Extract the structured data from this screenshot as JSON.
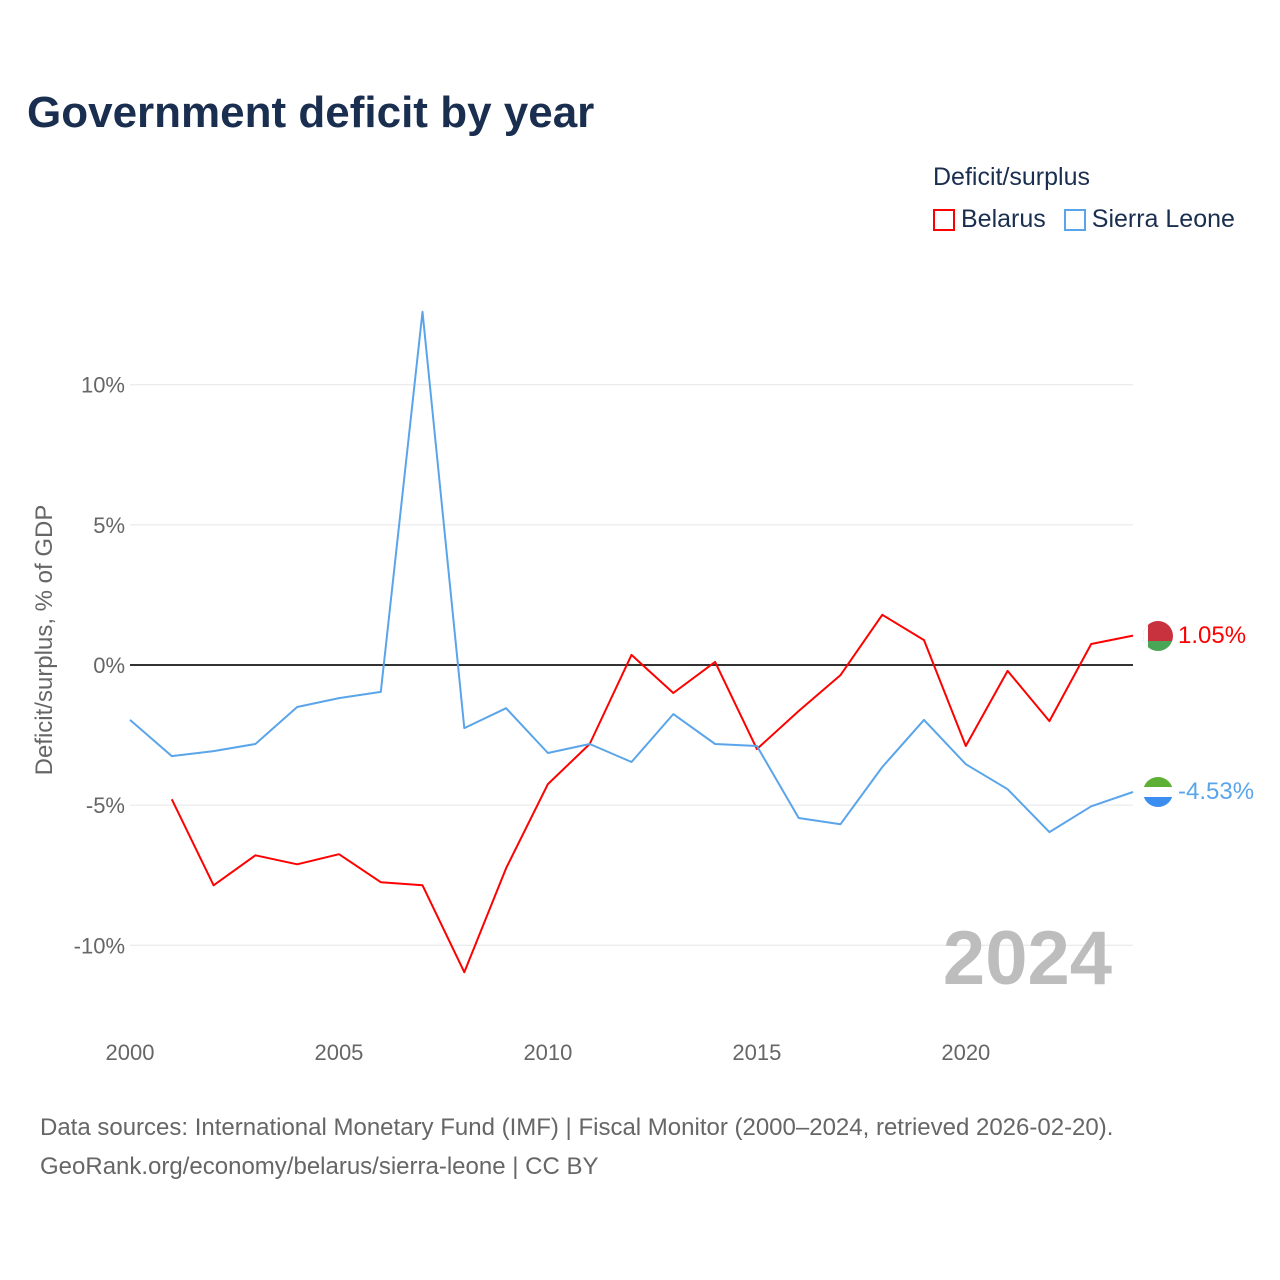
{
  "chart_data": {
    "type": "line",
    "title": "Government deficit by year",
    "ylabel": "Deficit/surplus, % of GDP",
    "xlabel": "",
    "legend_title": "Deficit/surplus",
    "legend_position": "top-right",
    "watermark_year": "2024",
    "xlim": [
      2000,
      2024
    ],
    "ylim": [
      -12.5,
      13.5
    ],
    "x_ticks": [
      2000,
      2005,
      2010,
      2015,
      2020
    ],
    "y_ticks": [
      10,
      5,
      0,
      -5,
      -10
    ],
    "y_tick_labels": [
      "10%",
      "5%",
      "0%",
      "-5%",
      "-10%"
    ],
    "x_tick_labels": [
      "2000",
      "2005",
      "2010",
      "2015",
      "2020"
    ],
    "series": [
      {
        "name": "Belarus",
        "color": "#ff0000",
        "end_label": "1.05%",
        "x": [
          2001,
          2002,
          2003,
          2004,
          2005,
          2006,
          2007,
          2008,
          2009,
          2010,
          2011,
          2012,
          2013,
          2014,
          2015,
          2016,
          2017,
          2018,
          2019,
          2020,
          2021,
          2022,
          2023,
          2024
        ],
        "values": [
          -4.79,
          -7.86,
          -6.79,
          -7.11,
          -6.75,
          -7.75,
          -7.86,
          -10.96,
          -7.25,
          -4.25,
          -2.82,
          0.36,
          -1.0,
          0.11,
          -3.0,
          -1.64,
          -0.36,
          1.79,
          0.89,
          -2.89,
          -0.21,
          -2.0,
          0.75,
          1.05
        ]
      },
      {
        "name": "Sierra Leone",
        "color": "#5aa5ea",
        "end_label": "-4.53%",
        "x": [
          2000,
          2001,
          2002,
          2003,
          2004,
          2005,
          2006,
          2007,
          2008,
          2009,
          2010,
          2011,
          2012,
          2013,
          2014,
          2015,
          2016,
          2017,
          2018,
          2019,
          2020,
          2021,
          2022,
          2023,
          2024
        ],
        "values": [
          -1.96,
          -3.25,
          -3.07,
          -2.82,
          -1.5,
          -1.18,
          -0.96,
          12.6,
          -2.25,
          -1.54,
          -3.14,
          -2.82,
          -3.46,
          -1.75,
          -2.82,
          -2.89,
          -5.46,
          -5.68,
          -3.64,
          -1.96,
          -3.54,
          -4.43,
          -5.96,
          -5.04,
          -4.53
        ]
      }
    ]
  },
  "source": {
    "line1": "Data sources: International Monetary Fund (IMF) | Fiscal Monitor (2000–2024, retrieved 2026-02-20).",
    "line2": "GeoRank.org/economy/belarus/sierra-leone | CC BY"
  }
}
